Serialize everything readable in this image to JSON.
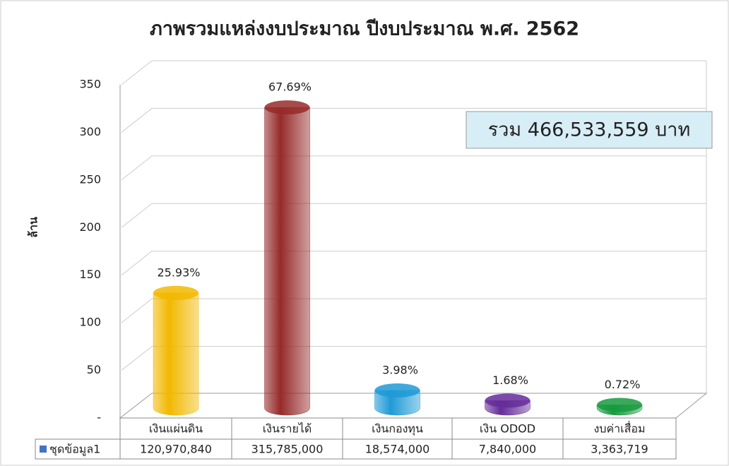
{
  "chart_data": {
    "type": "bar3d",
    "title": "ภาพรวมแหล่งงบประมาณ ปีงบประมาณ พ.ศ. 2562",
    "y_label": "ล้าน",
    "annotation": "รวม 466,533,559 บาท",
    "categories": [
      "เงินแผ่นดิน",
      "เงินรายได้",
      "เงินกองทุน",
      "เงิน ODOD",
      "งบค่าเสื่อม"
    ],
    "series": [
      {
        "name": "ชุดข้อมูล1",
        "color": "#4472c4",
        "values": [
          120.97084,
          315.785,
          18.574,
          7.84,
          3.363719
        ],
        "value_labels": [
          "120,970,840",
          "315,785,000",
          "18,574,000",
          "7,840,000",
          "3,363,719"
        ]
      }
    ],
    "percent_labels": [
      "25.93%",
      "67.69%",
      "3.98%",
      "1.68%",
      "0.72%"
    ],
    "bar_colors": [
      "#f2b800",
      "#962a2a",
      "#1f9ad6",
      "#652c9a",
      "#179a3e"
    ],
    "ylim": [
      0,
      350
    ],
    "yticks": [
      {
        "value": 0,
        "label": "-"
      },
      50,
      100,
      150,
      200,
      250,
      300,
      350
    ],
    "grid": true
  }
}
